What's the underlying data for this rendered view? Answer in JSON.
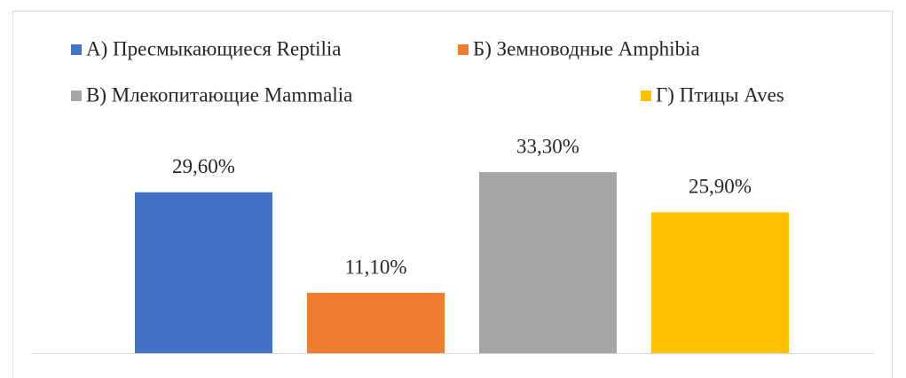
{
  "chart_data": {
    "type": "bar",
    "series": [
      {
        "name": "А) Пресмыкающиеся Reptilia",
        "color": "#4472c4",
        "values": [
          29.6
        ],
        "value_labels": [
          "29,60%"
        ]
      },
      {
        "name": "Б) Земноводные Amphibia",
        "color": "#ed7d31",
        "values": [
          11.1
        ],
        "value_labels": [
          "11,10%"
        ]
      },
      {
        "name": "В) Млекопитающие Mammalia",
        "color": "#a5a5a5",
        "values": [
          33.3
        ],
        "value_labels": [
          "33,30%"
        ]
      },
      {
        "name": "Г) Птицы Aves",
        "color": "#ffc000",
        "values": [
          25.9
        ],
        "value_labels": [
          "25,90%"
        ]
      }
    ],
    "legend": "top"
  }
}
